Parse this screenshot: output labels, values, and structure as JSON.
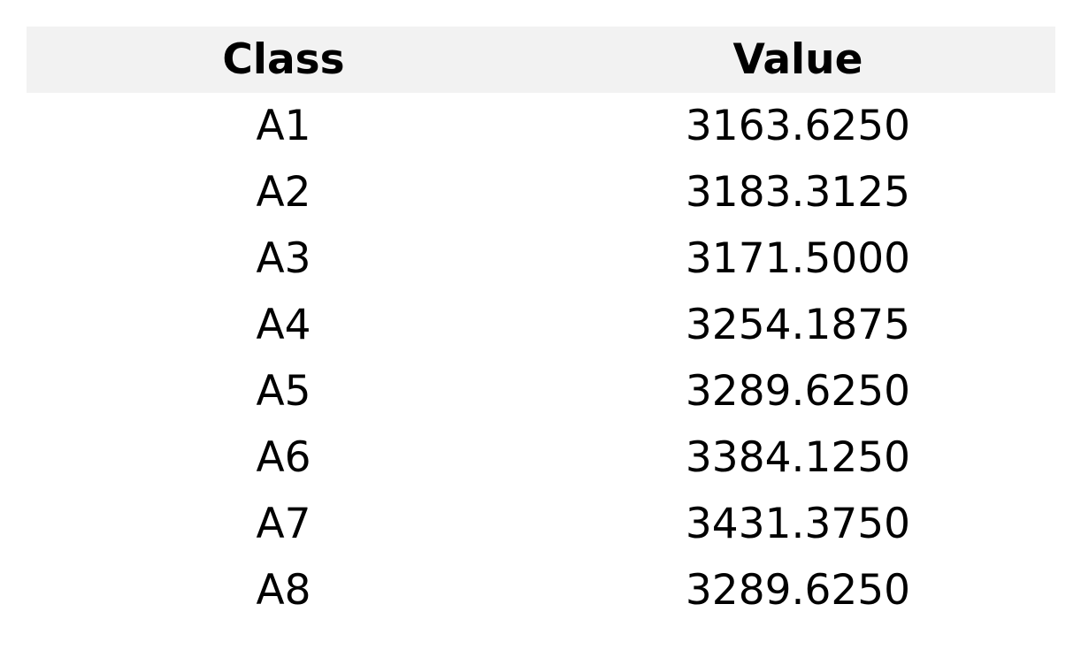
{
  "chart_data": {
    "type": "table",
    "columns": [
      "Class",
      "Value"
    ],
    "rows": [
      [
        "A1",
        "3163.6250"
      ],
      [
        "A2",
        "3183.3125"
      ],
      [
        "A3",
        "3171.5000"
      ],
      [
        "A4",
        "3254.1875"
      ],
      [
        "A5",
        "3289.6250"
      ],
      [
        "A6",
        "3384.1250"
      ],
      [
        "A7",
        "3431.3750"
      ],
      [
        "A8",
        "3289.6250"
      ]
    ],
    "colors": {
      "header_background": "#f2f2f2",
      "text": "#000000"
    }
  }
}
